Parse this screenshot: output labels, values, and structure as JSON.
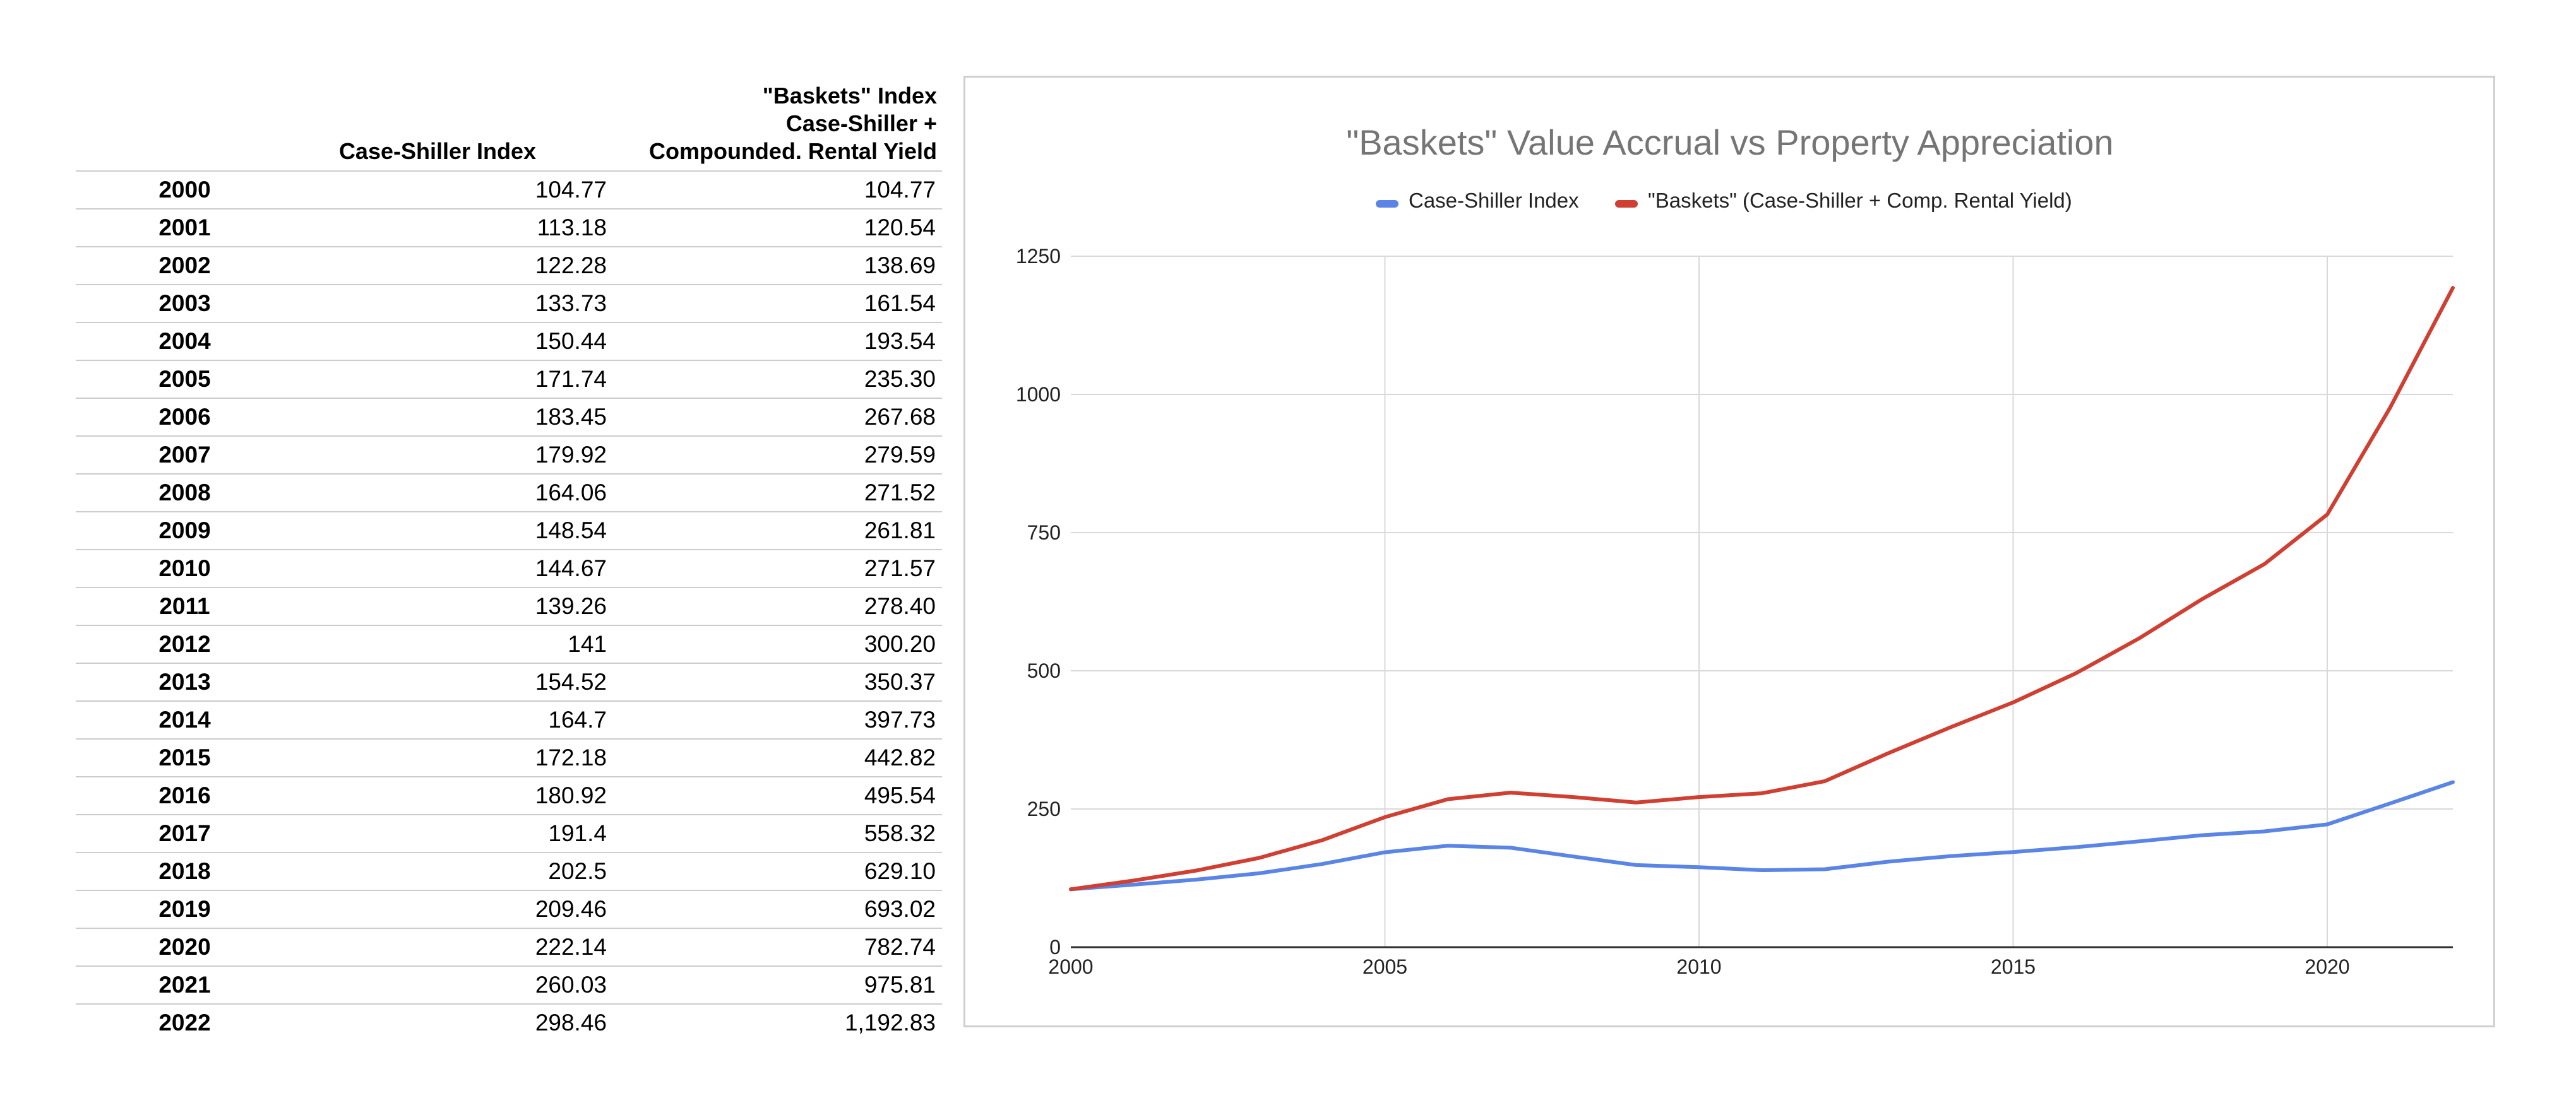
{
  "table": {
    "headers": {
      "year": "",
      "case_shiller": "Case-Shiller Index",
      "baskets": "\"Baskets\" Index\nCase-Shiller +\nCompounded. Rental Yield"
    },
    "rows": [
      {
        "year": "2000",
        "case_shiller": "104.77",
        "baskets": "104.77"
      },
      {
        "year": "2001",
        "case_shiller": "113.18",
        "baskets": "120.54"
      },
      {
        "year": "2002",
        "case_shiller": "122.28",
        "baskets": "138.69"
      },
      {
        "year": "2003",
        "case_shiller": "133.73",
        "baskets": "161.54"
      },
      {
        "year": "2004",
        "case_shiller": "150.44",
        "baskets": "193.54"
      },
      {
        "year": "2005",
        "case_shiller": "171.74",
        "baskets": "235.30"
      },
      {
        "year": "2006",
        "case_shiller": "183.45",
        "baskets": "267.68"
      },
      {
        "year": "2007",
        "case_shiller": "179.92",
        "baskets": "279.59"
      },
      {
        "year": "2008",
        "case_shiller": "164.06",
        "baskets": "271.52"
      },
      {
        "year": "2009",
        "case_shiller": "148.54",
        "baskets": "261.81"
      },
      {
        "year": "2010",
        "case_shiller": "144.67",
        "baskets": "271.57"
      },
      {
        "year": "2011",
        "case_shiller": "139.26",
        "baskets": "278.40"
      },
      {
        "year": "2012",
        "case_shiller": "141",
        "baskets": "300.20"
      },
      {
        "year": "2013",
        "case_shiller": "154.52",
        "baskets": "350.37"
      },
      {
        "year": "2014",
        "case_shiller": "164.7",
        "baskets": "397.73"
      },
      {
        "year": "2015",
        "case_shiller": "172.18",
        "baskets": "442.82"
      },
      {
        "year": "2016",
        "case_shiller": "180.92",
        "baskets": "495.54"
      },
      {
        "year": "2017",
        "case_shiller": "191.4",
        "baskets": "558.32"
      },
      {
        "year": "2018",
        "case_shiller": "202.5",
        "baskets": "629.10"
      },
      {
        "year": "2019",
        "case_shiller": "209.46",
        "baskets": "693.02"
      },
      {
        "year": "2020",
        "case_shiller": "222.14",
        "baskets": "782.74"
      },
      {
        "year": "2021",
        "case_shiller": "260.03",
        "baskets": "975.81"
      },
      {
        "year": "2022",
        "case_shiller": "298.46",
        "baskets": "1,192.83"
      }
    ]
  },
  "chart_data": {
    "type": "line",
    "title": "\"Baskets\" Value Accrual vs Property Appreciation",
    "xlabel": "",
    "ylabel": "",
    "x": [
      2000,
      2001,
      2002,
      2003,
      2004,
      2005,
      2006,
      2007,
      2008,
      2009,
      2010,
      2011,
      2012,
      2013,
      2014,
      2015,
      2016,
      2017,
      2018,
      2019,
      2020,
      2021,
      2022
    ],
    "xlim": [
      2000,
      2022
    ],
    "ylim": [
      0,
      1250
    ],
    "x_ticks": [
      2000,
      2005,
      2010,
      2015,
      2020
    ],
    "y_ticks": [
      0,
      250,
      500,
      750,
      1000,
      1250
    ],
    "grid": true,
    "legend_position": "top",
    "series": [
      {
        "name": "Case-Shiller Index",
        "color": "#5a85e6",
        "values": [
          104.77,
          113.18,
          122.28,
          133.73,
          150.44,
          171.74,
          183.45,
          179.92,
          164.06,
          148.54,
          144.67,
          139.26,
          141,
          154.52,
          164.7,
          172.18,
          180.92,
          191.4,
          202.5,
          209.46,
          222.14,
          260.03,
          298.46
        ]
      },
      {
        "name": "\"Baskets\" (Case-Shiller + Comp. Rental Yield)",
        "color": "#cf3f32",
        "values": [
          104.77,
          120.54,
          138.69,
          161.54,
          193.54,
          235.3,
          267.68,
          279.59,
          271.52,
          261.81,
          271.57,
          278.4,
          300.2,
          350.37,
          397.73,
          442.82,
          495.54,
          558.32,
          629.1,
          693.02,
          782.74,
          975.81,
          1192.83
        ]
      }
    ]
  }
}
